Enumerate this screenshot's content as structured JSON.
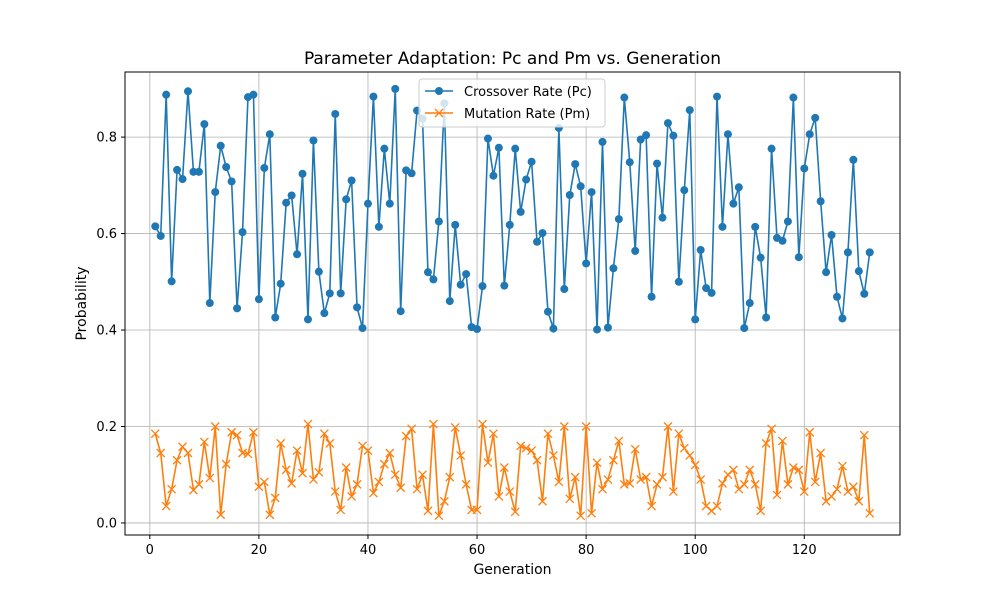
{
  "chart_data": {
    "type": "line",
    "title": "Parameter Adaptation: Pc and Pm vs. Generation",
    "xlabel": "Generation",
    "ylabel": "Probability",
    "xlim": [
      -4.55,
      137.55
    ],
    "ylim": [
      -0.025,
      0.935
    ],
    "xticks": [
      0,
      20,
      40,
      60,
      80,
      100,
      120
    ],
    "xtick_labels": [
      "0",
      "20",
      "40",
      "60",
      "80",
      "100",
      "120"
    ],
    "yticks": [
      0.0,
      0.2,
      0.4,
      0.6,
      0.8
    ],
    "ytick_labels": [
      "0.0",
      "0.2",
      "0.4",
      "0.6",
      "0.8"
    ],
    "grid": true,
    "legend_position": "upper-center",
    "series": [
      {
        "name": "Crossover Rate (Pc)",
        "color": "#1f77b4",
        "marker": "circle",
        "x_start": 1,
        "values": [
          0.615,
          0.595,
          0.888,
          0.501,
          0.732,
          0.713,
          0.895,
          0.728,
          0.728,
          0.827,
          0.456,
          0.686,
          0.782,
          0.738,
          0.708,
          0.445,
          0.603,
          0.883,
          0.888,
          0.464,
          0.736,
          0.806,
          0.426,
          0.496,
          0.664,
          0.679,
          0.557,
          0.724,
          0.422,
          0.793,
          0.521,
          0.435,
          0.476,
          0.848,
          0.476,
          0.671,
          0.71,
          0.447,
          0.404,
          0.662,
          0.884,
          0.614,
          0.776,
          0.662,
          0.9,
          0.439,
          0.731,
          0.725,
          0.855,
          0.838,
          0.52,
          0.505,
          0.625,
          0.87,
          0.46,
          0.618,
          0.494,
          0.516,
          0.406,
          0.402,
          0.491,
          0.797,
          0.72,
          0.778,
          0.492,
          0.618,
          0.776,
          0.645,
          0.712,
          0.749,
          0.583,
          0.601,
          0.438,
          0.403,
          0.819,
          0.485,
          0.68,
          0.744,
          0.698,
          0.538,
          0.686,
          0.401,
          0.79,
          0.405,
          0.528,
          0.63,
          0.882,
          0.748,
          0.564,
          0.795,
          0.804,
          0.469,
          0.745,
          0.633,
          0.829,
          0.803,
          0.5,
          0.69,
          0.856,
          0.422,
          0.566,
          0.487,
          0.477,
          0.884,
          0.614,
          0.806,
          0.662,
          0.696,
          0.404,
          0.456,
          0.614,
          0.55,
          0.426,
          0.776,
          0.591,
          0.585,
          0.625,
          0.882,
          0.551,
          0.735,
          0.806,
          0.84,
          0.667,
          0.52,
          0.597,
          0.469,
          0.424,
          0.561,
          0.753,
          0.522,
          0.475,
          0.561
        ]
      },
      {
        "name": "Mutation Rate (Pm)",
        "color": "#ff7f0e",
        "marker": "x",
        "x_start": 1,
        "values": [
          0.185,
          0.145,
          0.035,
          0.07,
          0.13,
          0.158,
          0.145,
          0.068,
          0.08,
          0.168,
          0.093,
          0.2,
          0.017,
          0.122,
          0.188,
          0.182,
          0.145,
          0.143,
          0.188,
          0.075,
          0.085,
          0.017,
          0.052,
          0.165,
          0.11,
          0.082,
          0.15,
          0.103,
          0.205,
          0.09,
          0.105,
          0.185,
          0.165,
          0.065,
          0.027,
          0.115,
          0.055,
          0.08,
          0.16,
          0.15,
          0.062,
          0.085,
          0.122,
          0.145,
          0.1,
          0.073,
          0.18,
          0.195,
          0.07,
          0.1,
          0.025,
          0.205,
          0.015,
          0.045,
          0.095,
          0.198,
          0.14,
          0.08,
          0.027,
          0.027,
          0.205,
          0.125,
          0.185,
          0.055,
          0.115,
          0.065,
          0.023,
          0.16,
          0.155,
          0.15,
          0.13,
          0.045,
          0.185,
          0.14,
          0.085,
          0.2,
          0.05,
          0.095,
          0.015,
          0.2,
          0.02,
          0.125,
          0.07,
          0.09,
          0.13,
          0.17,
          0.08,
          0.082,
          0.153,
          0.09,
          0.095,
          0.035,
          0.08,
          0.095,
          0.2,
          0.065,
          0.185,
          0.155,
          0.14,
          0.12,
          0.09,
          0.035,
          0.025,
          0.035,
          0.082,
          0.1,
          0.11,
          0.07,
          0.08,
          0.11,
          0.08,
          0.025,
          0.165,
          0.195,
          0.058,
          0.17,
          0.08,
          0.115,
          0.11,
          0.065,
          0.188,
          0.085,
          0.145,
          0.045,
          0.055,
          0.07,
          0.118,
          0.065,
          0.075,
          0.045,
          0.182,
          0.02
        ]
      }
    ]
  }
}
